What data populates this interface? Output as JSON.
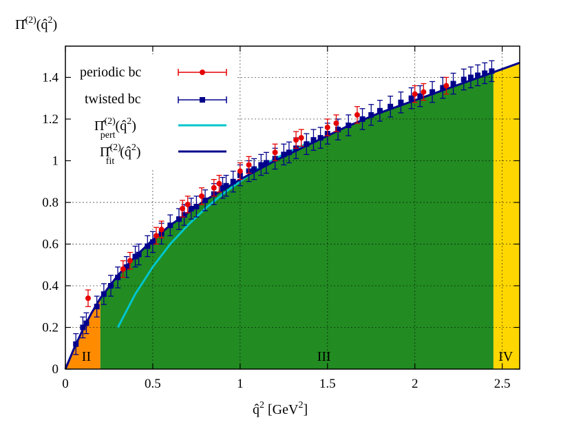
{
  "chart_data": {
    "type": "scatter",
    "title": "",
    "ylabel_main": "Π̂",
    "ylabel_sup": "(2)",
    "ylabel_arg": "(q̂",
    "ylabel_arg_sup": "2",
    "ylabel_close": ")",
    "xlabel_main": "q̂",
    "xlabel_sup": "2",
    "xlabel_unit": " [GeV",
    "xlabel_unit_sup": "2",
    "xlabel_close": "]",
    "xlim": [
      0,
      2.6
    ],
    "ylim": [
      0,
      1.55
    ],
    "xticks": [
      0,
      0.5,
      1,
      1.5,
      2,
      2.5
    ],
    "xtick_labels": [
      "0",
      "0.5",
      "1",
      "1.5",
      "2",
      "2.5"
    ],
    "yticks": [
      0,
      0.2,
      0.4,
      0.6,
      0.8,
      1,
      1.2,
      1.4
    ],
    "ytick_labels": [
      "0",
      "0.2",
      "0.4",
      "0.6",
      "0.8",
      "1",
      "1.2",
      "1.4"
    ],
    "grid": true,
    "legend_position": "top-left",
    "regions": [
      {
        "label": "II",
        "x_start": 0,
        "x_end": 0.2,
        "color": "#ff8c00"
      },
      {
        "label": "III",
        "x_start": 0.2,
        "x_end": 2.45,
        "color": "#228b22"
      },
      {
        "label": "IV",
        "x_start": 2.45,
        "x_end": 2.6,
        "color": "#ffd700"
      }
    ],
    "region_label_positions": [
      {
        "label": "II",
        "x": 0.12
      },
      {
        "label": "III",
        "x": 1.48
      },
      {
        "label": "IV",
        "x": 2.52
      }
    ],
    "series": [
      {
        "name": "periodic bc",
        "color": "#e50000",
        "marker": "circle",
        "x": [
          0.13,
          0.33,
          0.37,
          0.52,
          0.55,
          0.67,
          0.7,
          0.78,
          0.85,
          0.88,
          1.0,
          1.05,
          1.2,
          1.32,
          1.35,
          1.5,
          1.55,
          1.67,
          2.0,
          2.05,
          2.18
        ],
        "y": [
          0.34,
          0.48,
          0.52,
          0.64,
          0.67,
          0.77,
          0.79,
          0.83,
          0.87,
          0.89,
          0.95,
          0.98,
          1.04,
          1.1,
          1.11,
          1.16,
          1.18,
          1.22,
          1.32,
          1.33,
          1.36
        ],
        "err": [
          0.04,
          0.04,
          0.04,
          0.04,
          0.04,
          0.04,
          0.04,
          0.04,
          0.04,
          0.04,
          0.04,
          0.04,
          0.04,
          0.04,
          0.04,
          0.04,
          0.04,
          0.04,
          0.04,
          0.04,
          0.04
        ]
      },
      {
        "name": "twisted bc",
        "color": "#00008b",
        "marker": "square",
        "x": [
          0.06,
          0.1,
          0.12,
          0.18,
          0.22,
          0.26,
          0.3,
          0.35,
          0.4,
          0.42,
          0.47,
          0.5,
          0.55,
          0.6,
          0.65,
          0.68,
          0.72,
          0.75,
          0.8,
          0.85,
          0.9,
          0.92,
          0.96,
          1.0,
          1.05,
          1.08,
          1.12,
          1.15,
          1.2,
          1.25,
          1.28,
          1.32,
          1.38,
          1.42,
          1.46,
          1.5,
          1.56,
          1.62,
          1.7,
          1.75,
          1.8,
          1.86,
          1.92,
          1.98,
          2.03,
          2.1,
          2.16,
          2.22,
          2.28,
          2.32,
          2.36,
          2.4,
          2.44
        ],
        "y": [
          0.12,
          0.2,
          0.22,
          0.3,
          0.36,
          0.4,
          0.44,
          0.49,
          0.54,
          0.55,
          0.59,
          0.61,
          0.65,
          0.69,
          0.72,
          0.74,
          0.77,
          0.78,
          0.81,
          0.84,
          0.87,
          0.88,
          0.9,
          0.93,
          0.95,
          0.96,
          0.98,
          0.99,
          1.01,
          1.03,
          1.04,
          1.06,
          1.08,
          1.1,
          1.11,
          1.13,
          1.15,
          1.17,
          1.2,
          1.22,
          1.24,
          1.26,
          1.28,
          1.3,
          1.31,
          1.33,
          1.35,
          1.37,
          1.39,
          1.4,
          1.41,
          1.42,
          1.43
        ],
        "err": [
          0.05,
          0.05,
          0.05,
          0.05,
          0.05,
          0.05,
          0.05,
          0.05,
          0.05,
          0.05,
          0.05,
          0.05,
          0.05,
          0.05,
          0.05,
          0.05,
          0.05,
          0.05,
          0.05,
          0.05,
          0.05,
          0.05,
          0.05,
          0.05,
          0.05,
          0.05,
          0.05,
          0.05,
          0.05,
          0.05,
          0.05,
          0.05,
          0.05,
          0.05,
          0.05,
          0.05,
          0.05,
          0.05,
          0.05,
          0.05,
          0.05,
          0.05,
          0.05,
          0.05,
          0.05,
          0.05,
          0.05,
          0.05,
          0.05,
          0.05,
          0.05,
          0.05,
          0.05
        ]
      },
      {
        "name_main": "Π̂",
        "name_sup": "(2)",
        "name_sub": "pert",
        "name_arg": "(q̂",
        "name_arg_sup": "2",
        "name_close": ")",
        "color": "#00c5cd",
        "marker": "line",
        "x": [
          0.3,
          0.4,
          0.5,
          0.6,
          0.7,
          0.8,
          0.9,
          1.0,
          1.1,
          1.2,
          1.3,
          1.4
        ],
        "y": [
          0.2,
          0.36,
          0.49,
          0.6,
          0.69,
          0.77,
          0.84,
          0.9,
          0.96,
          1.01,
          1.05,
          1.09
        ]
      },
      {
        "name_main": "Π̂",
        "name_sup": "(2)",
        "name_sub": "fit",
        "name_arg": "(q̂",
        "name_arg_sup": "2",
        "name_close": ")",
        "color": "#00008b",
        "marker": "line",
        "x": [
          0.0,
          0.05,
          0.1,
          0.15,
          0.2,
          0.3,
          0.4,
          0.5,
          0.6,
          0.7,
          0.8,
          0.9,
          1.0,
          1.2,
          1.4,
          1.6,
          1.8,
          2.0,
          2.2,
          2.4,
          2.6
        ],
        "y": [
          0.0,
          0.1,
          0.19,
          0.27,
          0.34,
          0.45,
          0.54,
          0.62,
          0.69,
          0.75,
          0.81,
          0.86,
          0.91,
          1.0,
          1.08,
          1.16,
          1.23,
          1.29,
          1.35,
          1.41,
          1.47
        ]
      }
    ]
  }
}
